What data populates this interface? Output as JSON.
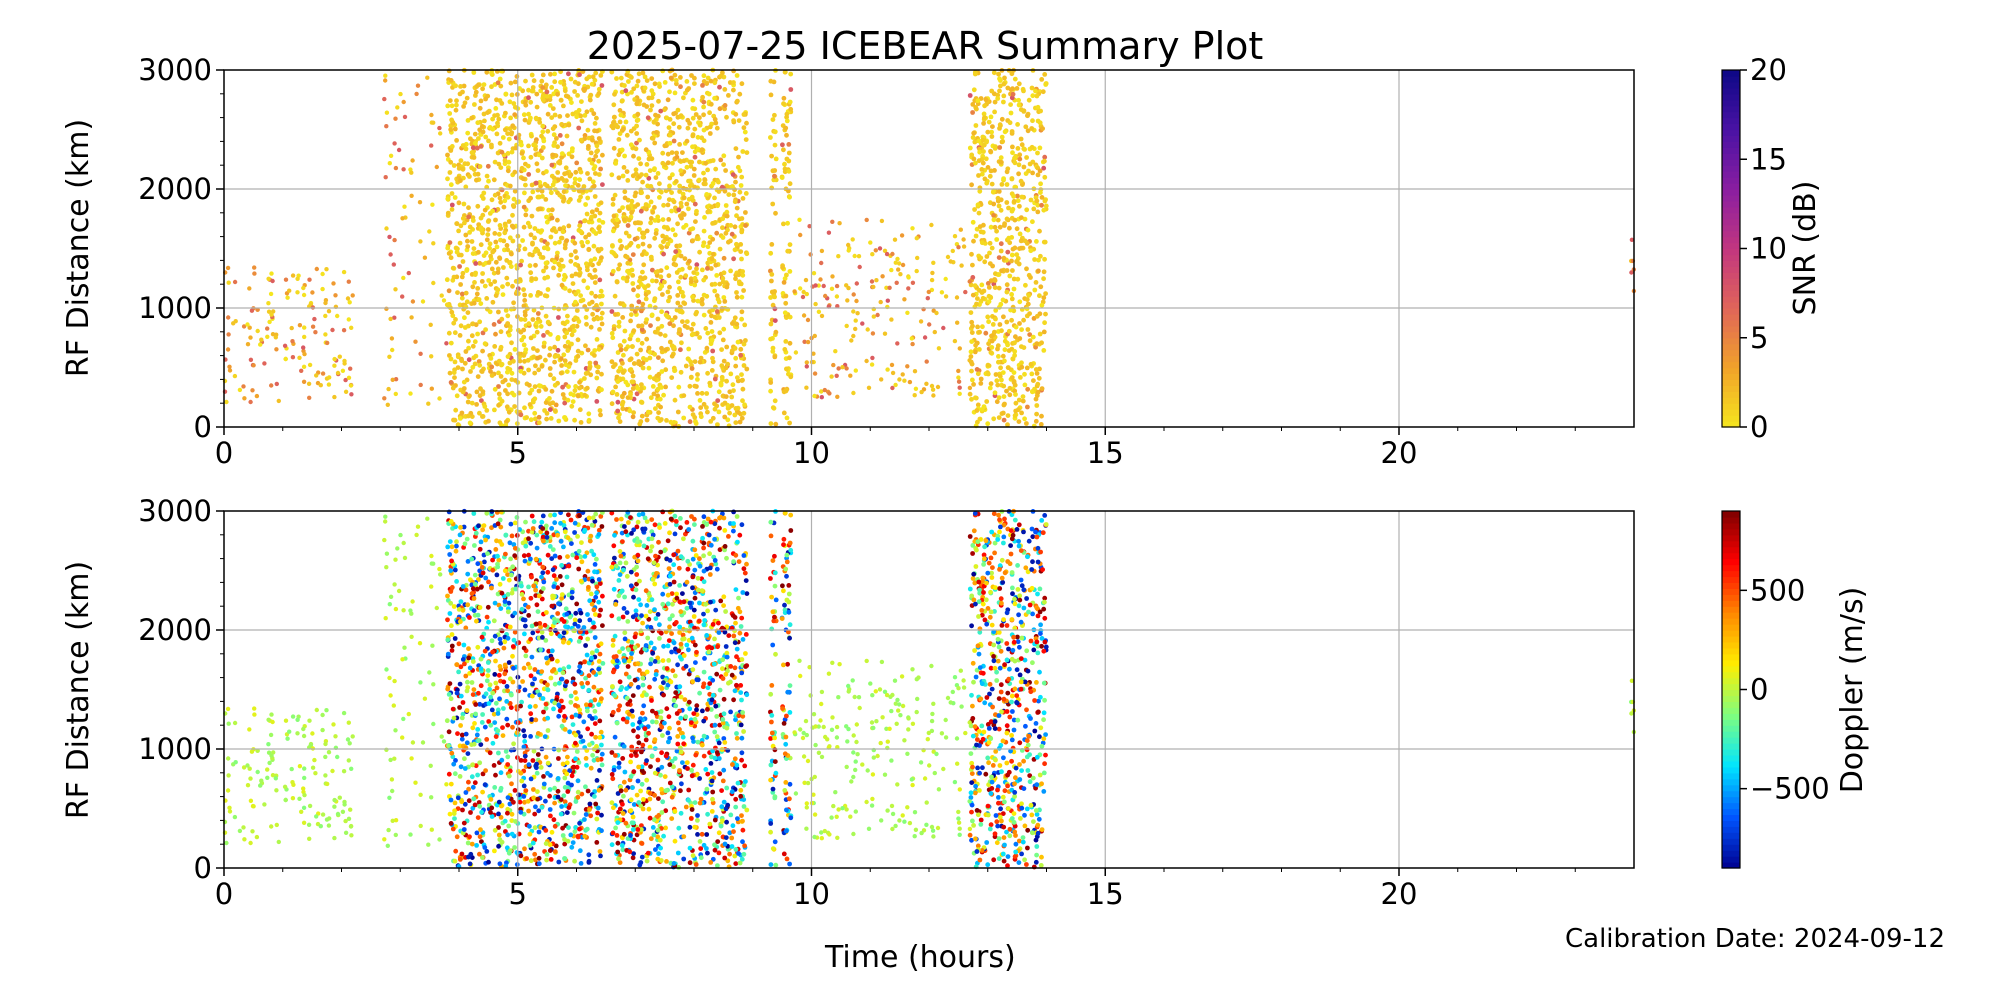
{
  "figure": {
    "title": "2025-07-25 ICEBEAR Summary Plot",
    "xlabel": "Time (hours)",
    "calibration_label": "Calibration Date: 2024-09-12"
  },
  "colors": {
    "snr_cmap": [
      "#f5e61e",
      "#f1a22a",
      "#e06559",
      "#c2367f",
      "#8a1ea1",
      "#4a12a4",
      "#0d0887"
    ],
    "doppler_cmap": [
      "#7f0000",
      "#ff0000",
      "#ff8800",
      "#ffee00",
      "#7fff7f",
      "#00e5ff",
      "#0055ff",
      "#00008f"
    ],
    "grid": "#b0b0b0"
  },
  "chart_data": [
    {
      "type": "scatter",
      "title": "2025-07-25 ICEBEAR Summary Plot",
      "xlabel": "",
      "ylabel": "RF Distance (km)",
      "xlim": [
        0,
        24
      ],
      "ylim": [
        0,
        3000
      ],
      "xticks": [
        0,
        5,
        10,
        15,
        20
      ],
      "yticks": [
        0,
        1000,
        2000,
        3000
      ],
      "grid": true,
      "color_variable": "SNR (dB)",
      "colorbar": {
        "label": "SNR (dB)",
        "range": [
          0,
          20
        ],
        "ticks": [
          0,
          5,
          10,
          15,
          20
        ]
      },
      "dense_bands_hours": [
        [
          3.8,
          6.45
        ],
        [
          6.6,
          8.9
        ],
        [
          9.3,
          9.4
        ],
        [
          9.5,
          9.65
        ],
        [
          12.7,
          14.0
        ]
      ],
      "sparse_regions_hours": [
        [
          0,
          2.2
        ],
        [
          2.7,
          3.8
        ],
        [
          9.7,
          12.7
        ],
        [
          23.95,
          24
        ]
      ],
      "typical_snr_db": [
        0,
        3
      ]
    },
    {
      "type": "scatter",
      "xlabel": "Time (hours)",
      "ylabel": "RF Distance (km)",
      "xlim": [
        0,
        24
      ],
      "ylim": [
        0,
        3000
      ],
      "xticks": [
        0,
        5,
        10,
        15,
        20
      ],
      "yticks": [
        0,
        1000,
        2000,
        3000
      ],
      "grid": true,
      "color_variable": "Doppler (m/s)",
      "colorbar": {
        "label": "Doppler (m/s)",
        "range": [
          -900,
          900
        ],
        "ticks": [
          -500,
          0,
          500
        ],
        "tick_labels": [
          "−500",
          "0",
          "500"
        ]
      },
      "dense_bands_hours": [
        [
          3.8,
          6.45
        ],
        [
          6.6,
          8.9
        ],
        [
          9.3,
          9.4
        ],
        [
          9.5,
          9.65
        ],
        [
          12.7,
          14.0
        ]
      ],
      "sparse_regions_hours": [
        [
          0,
          2.2
        ],
        [
          2.7,
          3.8
        ],
        [
          9.7,
          12.7
        ],
        [
          23.95,
          24
        ]
      ],
      "sparse_doppler_ms": [
        -100,
        100
      ]
    }
  ]
}
